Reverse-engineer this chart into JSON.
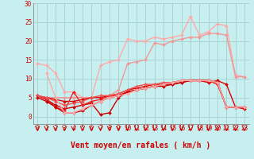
{
  "background_color": "#c8efef",
  "grid_color": "#aad4d4",
  "xlabel": "Vent moyen/en rafales ( km/h )",
  "xlim": [
    -0.5,
    23.5
  ],
  "ylim": [
    -2,
    30
  ],
  "yticks": [
    0,
    5,
    10,
    15,
    20,
    25,
    30
  ],
  "xticks": [
    0,
    1,
    2,
    3,
    4,
    5,
    6,
    7,
    8,
    9,
    10,
    11,
    12,
    13,
    14,
    15,
    16,
    17,
    18,
    19,
    20,
    21,
    22,
    23
  ],
  "lines": [
    {
      "x": [
        0,
        1,
        2,
        3,
        4,
        5,
        6,
        7,
        8,
        9,
        10,
        11,
        12,
        13,
        14,
        15,
        16,
        17,
        18,
        19,
        20,
        21,
        22,
        23
      ],
      "y": [
        14.0,
        13.5,
        11.5,
        6.5,
        6.5,
        5.0,
        5.0,
        13.5,
        14.5,
        15.0,
        20.5,
        20.0,
        20.0,
        21.0,
        20.5,
        21.0,
        21.5,
        26.5,
        21.5,
        22.5,
        24.5,
        24.0,
        11.0,
        10.5
      ],
      "color": "#ffaaaa",
      "lw": 1.0,
      "marker": "D",
      "ms": 2.0
    },
    {
      "x": [
        0,
        1,
        2,
        3,
        4,
        5,
        6,
        7,
        8,
        9,
        10,
        11,
        12,
        13,
        14,
        15,
        16,
        17,
        18,
        19,
        20,
        21,
        22,
        23
      ],
      "y": [
        5.5,
        5.0,
        5.0,
        5.0,
        5.0,
        5.0,
        5.0,
        5.5,
        5.5,
        7.0,
        14.0,
        14.5,
        15.0,
        19.5,
        19.0,
        20.0,
        20.5,
        21.0,
        21.0,
        22.0,
        22.0,
        21.5,
        10.5,
        10.5
      ],
      "color": "#ee9999",
      "lw": 1.0,
      "marker": "D",
      "ms": 2.0
    },
    {
      "x": [
        0,
        1,
        2,
        3,
        4,
        5,
        6,
        7,
        8,
        9,
        10,
        11,
        12,
        13,
        14,
        15,
        16,
        17,
        18,
        19,
        20,
        21,
        22,
        23
      ],
      "y": [
        5.5,
        5.0,
        4.5,
        4.0,
        4.0,
        4.5,
        5.0,
        5.0,
        5.5,
        6.0,
        7.0,
        7.5,
        8.0,
        8.5,
        8.5,
        9.0,
        9.5,
        9.5,
        9.5,
        9.0,
        9.5,
        8.5,
        2.5,
        2.0
      ],
      "color": "#dd0000",
      "lw": 1.0,
      "marker": "D",
      "ms": 2.0
    },
    {
      "x": [
        0,
        1,
        2,
        3,
        4,
        5,
        6,
        7,
        8,
        9,
        10,
        11,
        12,
        13,
        14,
        15,
        16,
        17,
        18,
        19,
        20,
        21,
        22,
        23
      ],
      "y": [
        5.5,
        4.5,
        3.0,
        2.0,
        2.5,
        3.0,
        3.5,
        0.5,
        1.0,
        5.0,
        6.5,
        7.0,
        7.5,
        8.0,
        8.0,
        8.5,
        9.0,
        9.5,
        9.5,
        9.5,
        9.0,
        2.5,
        2.5,
        2.5
      ],
      "color": "#cc0000",
      "lw": 1.0,
      "marker": "D",
      "ms": 2.0
    },
    {
      "x": [
        0,
        1,
        2,
        3,
        4,
        5,
        6,
        7,
        8,
        9,
        10,
        11,
        12,
        13,
        14,
        15,
        16,
        17,
        18,
        19,
        20,
        21,
        22,
        23
      ],
      "y": [
        5.5,
        4.5,
        2.5,
        1.5,
        6.5,
        3.0,
        4.0,
        4.5,
        5.5,
        5.5,
        6.5,
        7.0,
        7.5,
        8.0,
        8.5,
        9.0,
        9.5,
        9.5,
        9.5,
        9.5,
        8.5,
        2.5,
        2.5,
        2.5
      ],
      "color": "#ee2222",
      "lw": 1.0,
      "marker": "D",
      "ms": 2.0
    },
    {
      "x": [
        0,
        1,
        2,
        3,
        4,
        5,
        6,
        7,
        8,
        9,
        10,
        11,
        12,
        13,
        14,
        15,
        16,
        17,
        18,
        19,
        20,
        21,
        22,
        23
      ],
      "y": [
        5.5,
        5.0,
        4.0,
        3.0,
        3.5,
        4.0,
        5.0,
        5.5,
        5.5,
        6.0,
        7.0,
        8.0,
        8.5,
        8.5,
        9.0,
        9.0,
        9.5,
        9.5,
        9.5,
        9.5,
        9.0,
        2.5,
        2.5,
        2.5
      ],
      "color": "#ee5555",
      "lw": 1.0,
      "marker": "D",
      "ms": 2.0
    },
    {
      "x": [
        0,
        1,
        2,
        3,
        4,
        5,
        6,
        7,
        8,
        9,
        10,
        11,
        12,
        13,
        14,
        15,
        16,
        17,
        18,
        19,
        20,
        21,
        22,
        23
      ],
      "y": [
        5.0,
        4.0,
        2.5,
        1.0,
        1.0,
        1.5,
        3.0,
        4.0,
        5.0,
        5.5,
        6.5,
        7.0,
        7.5,
        8.0,
        8.5,
        8.5,
        9.0,
        9.5,
        9.5,
        9.5,
        9.0,
        2.5,
        2.5,
        2.5
      ],
      "color": "#cc0000",
      "lw": 1.0,
      "marker": "D",
      "ms": 2.0
    },
    {
      "x": [
        1,
        2,
        3,
        4,
        5,
        6,
        7,
        8,
        9,
        10,
        11,
        12,
        13,
        14,
        15,
        16,
        17,
        18,
        19,
        20,
        21,
        22,
        23
      ],
      "y": [
        11.5,
        5.0,
        1.0,
        1.0,
        2.0,
        3.0,
        4.0,
        5.0,
        5.5,
        6.0,
        7.0,
        7.5,
        8.0,
        8.5,
        9.0,
        9.5,
        9.5,
        9.5,
        9.5,
        9.0,
        2.5,
        2.5,
        2.5
      ],
      "color": "#ffaaaa",
      "lw": 1.0,
      "marker": "D",
      "ms": 2.0
    }
  ],
  "tick_label_fontsize": 5.5,
  "xlabel_fontsize": 7.0
}
